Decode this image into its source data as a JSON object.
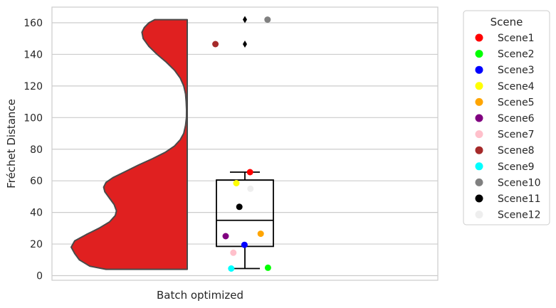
{
  "chart_data": {
    "type": "violin+box+strip",
    "title": "",
    "xlabel": "",
    "ylabel": "Fréchet Distance",
    "categories": [
      "Batch optimized"
    ],
    "ylim": [
      -3,
      170
    ],
    "yticks": [
      0,
      20,
      40,
      60,
      80,
      100,
      120,
      140,
      160
    ],
    "grid": true,
    "legend": {
      "title": "Scene",
      "placement": "outside-right"
    },
    "violin": {
      "color": "#e02020",
      "outline": "#4a4a4a",
      "side": "left",
      "profile": [
        {
          "y": 4,
          "w": 0.7
        },
        {
          "y": 6,
          "w": 0.84
        },
        {
          "y": 10,
          "w": 0.93
        },
        {
          "y": 14,
          "w": 0.97
        },
        {
          "y": 18,
          "w": 1.0
        },
        {
          "y": 22,
          "w": 0.97
        },
        {
          "y": 26,
          "w": 0.87
        },
        {
          "y": 30,
          "w": 0.76
        },
        {
          "y": 34,
          "w": 0.67
        },
        {
          "y": 38,
          "w": 0.62
        },
        {
          "y": 41,
          "w": 0.61
        },
        {
          "y": 45,
          "w": 0.63
        },
        {
          "y": 49,
          "w": 0.67
        },
        {
          "y": 53,
          "w": 0.71
        },
        {
          "y": 56,
          "w": 0.72
        },
        {
          "y": 59,
          "w": 0.7
        },
        {
          "y": 62,
          "w": 0.64
        },
        {
          "y": 66,
          "w": 0.53
        },
        {
          "y": 70,
          "w": 0.42
        },
        {
          "y": 74,
          "w": 0.3
        },
        {
          "y": 78,
          "w": 0.19
        },
        {
          "y": 82,
          "w": 0.11
        },
        {
          "y": 86,
          "w": 0.06
        },
        {
          "y": 90,
          "w": 0.03
        },
        {
          "y": 95,
          "w": 0.015
        },
        {
          "y": 100,
          "w": 0.007
        },
        {
          "y": 105,
          "w": 0.006
        },
        {
          "y": 110,
          "w": 0.009
        },
        {
          "y": 115,
          "w": 0.015
        },
        {
          "y": 120,
          "w": 0.03
        },
        {
          "y": 125,
          "w": 0.06
        },
        {
          "y": 130,
          "w": 0.11
        },
        {
          "y": 135,
          "w": 0.18
        },
        {
          "y": 140,
          "w": 0.26
        },
        {
          "y": 145,
          "w": 0.33
        },
        {
          "y": 150,
          "w": 0.38
        },
        {
          "y": 154,
          "w": 0.39
        },
        {
          "y": 157,
          "w": 0.37
        },
        {
          "y": 160,
          "w": 0.33
        },
        {
          "y": 162,
          "w": 0.28
        }
      ]
    },
    "box": {
      "whisker_low": 4.5,
      "q1": 18.5,
      "median": 35,
      "q3": 60.5,
      "whisker_high": 65.5,
      "outliers": [
        146.5,
        162
      ]
    },
    "series": [
      {
        "name": "Scene1",
        "color": "#ff0000",
        "value": 65.5,
        "jitter": 0.12
      },
      {
        "name": "Scene2",
        "color": "#00ff00",
        "value": 5,
        "jitter": 0.54
      },
      {
        "name": "Scene3",
        "color": "#0000ff",
        "value": 19.5,
        "jitter": -0.01
      },
      {
        "name": "Scene4",
        "color": "#ffff00",
        "value": 58.5,
        "jitter": -0.2
      },
      {
        "name": "Scene5",
        "color": "#ffa500",
        "value": 26.5,
        "jitter": 0.37
      },
      {
        "name": "Scene6",
        "color": "#800080",
        "value": 25,
        "jitter": -0.45
      },
      {
        "name": "Scene7",
        "color": "#ffc0cb",
        "value": 14.5,
        "jitter": -0.27
      },
      {
        "name": "Scene8",
        "color": "#a52a2a",
        "value": 146.5,
        "jitter": -0.69
      },
      {
        "name": "Scene9",
        "color": "#00ffff",
        "value": 4.5,
        "jitter": -0.32
      },
      {
        "name": "Scene10",
        "color": "#808080",
        "value": 162,
        "jitter": 0.53
      },
      {
        "name": "Scene11",
        "color": "#000000",
        "value": 43.5,
        "jitter": -0.13
      },
      {
        "name": "Scene12",
        "color": "#eeeeee",
        "value": 55,
        "jitter": 0.13
      }
    ]
  }
}
